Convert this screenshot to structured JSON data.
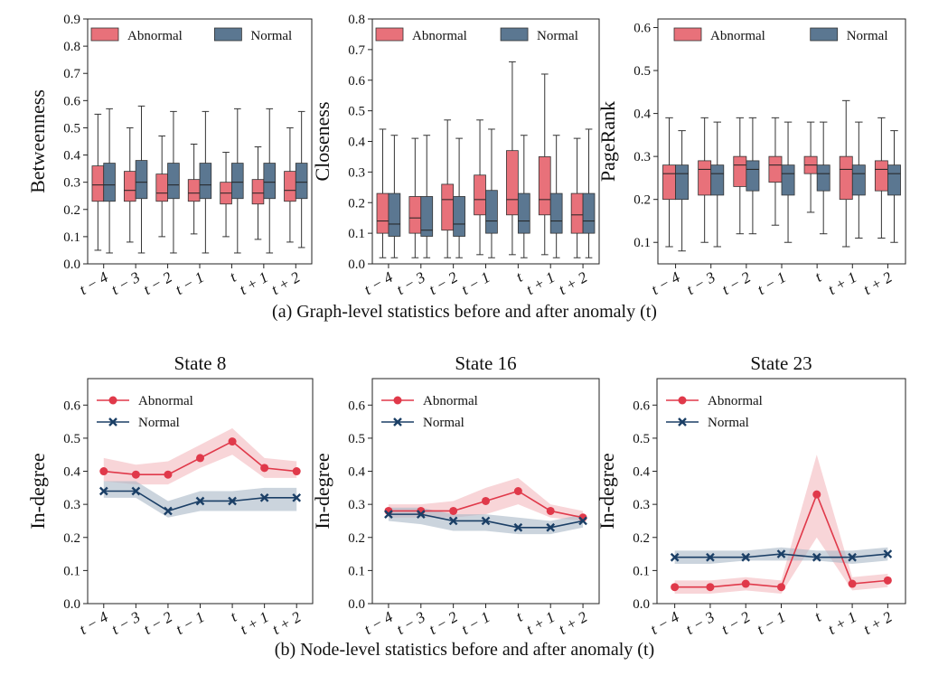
{
  "colors": {
    "abnormal": "#e8717a",
    "normal": "#5b7791",
    "abnormal_line": "#e0394a",
    "normal_line": "#1b3f66",
    "abnormal_band": "#f4b9be",
    "normal_band": "#a9b7c6",
    "axis": "#222222",
    "whisker": "#333333"
  },
  "captions": {
    "a": "(a) Graph-level statistics before and after anomaly (t)",
    "b": "(b) Node-level statistics before and after anomaly (t)"
  },
  "chart_data": [
    {
      "type": "box",
      "title": "",
      "ylabel": "Betweenness",
      "ylim": [
        0,
        0.9
      ],
      "yticks": [
        "0.0",
        "0.1",
        "0.2",
        "0.3",
        "0.4",
        "0.5",
        "0.6",
        "0.7",
        "0.8",
        "0.9"
      ],
      "categories": [
        "t − 4",
        "t − 3",
        "t − 2",
        "t − 1",
        "t",
        "t + 1",
        "t + 2"
      ],
      "legend": {
        "position": "top",
        "entries": [
          "Abnormal",
          "Normal"
        ]
      },
      "series": [
        {
          "name": "Abnormal",
          "boxes": [
            {
              "min": 0.05,
              "q1": 0.23,
              "median": 0.29,
              "q3": 0.36,
              "max": 0.55
            },
            {
              "min": 0.08,
              "q1": 0.23,
              "median": 0.27,
              "q3": 0.34,
              "max": 0.5
            },
            {
              "min": 0.1,
              "q1": 0.23,
              "median": 0.26,
              "q3": 0.33,
              "max": 0.47
            },
            {
              "min": 0.11,
              "q1": 0.23,
              "median": 0.26,
              "q3": 0.31,
              "max": 0.44
            },
            {
              "min": 0.1,
              "q1": 0.22,
              "median": 0.26,
              "q3": 0.3,
              "max": 0.41
            },
            {
              "min": 0.09,
              "q1": 0.22,
              "median": 0.26,
              "q3": 0.31,
              "max": 0.43
            },
            {
              "min": 0.08,
              "q1": 0.23,
              "median": 0.27,
              "q3": 0.34,
              "max": 0.5
            }
          ]
        },
        {
          "name": "Normal",
          "boxes": [
            {
              "min": 0.04,
              "q1": 0.23,
              "median": 0.29,
              "q3": 0.37,
              "max": 0.57
            },
            {
              "min": 0.04,
              "q1": 0.24,
              "median": 0.3,
              "q3": 0.38,
              "max": 0.58
            },
            {
              "min": 0.04,
              "q1": 0.24,
              "median": 0.29,
              "q3": 0.37,
              "max": 0.56
            },
            {
              "min": 0.04,
              "q1": 0.24,
              "median": 0.29,
              "q3": 0.37,
              "max": 0.56
            },
            {
              "min": 0.04,
              "q1": 0.24,
              "median": 0.3,
              "q3": 0.37,
              "max": 0.57
            },
            {
              "min": 0.04,
              "q1": 0.24,
              "median": 0.3,
              "q3": 0.37,
              "max": 0.57
            },
            {
              "min": 0.06,
              "q1": 0.24,
              "median": 0.3,
              "q3": 0.37,
              "max": 0.56
            }
          ]
        }
      ]
    },
    {
      "type": "box",
      "title": "",
      "ylabel": "Closeness",
      "ylim": [
        0,
        0.8
      ],
      "yticks": [
        "0.0",
        "0.1",
        "0.2",
        "0.3",
        "0.4",
        "0.5",
        "0.6",
        "0.7",
        "0.8"
      ],
      "categories": [
        "t − 4",
        "t − 3",
        "t − 2",
        "t − 1",
        "t",
        "t + 1",
        "t + 2"
      ],
      "legend": {
        "position": "top",
        "entries": [
          "Abnormal",
          "Normal"
        ]
      },
      "series": [
        {
          "name": "Abnormal",
          "boxes": [
            {
              "min": 0.02,
              "q1": 0.1,
              "median": 0.14,
              "q3": 0.23,
              "max": 0.44
            },
            {
              "min": 0.02,
              "q1": 0.1,
              "median": 0.15,
              "q3": 0.22,
              "max": 0.41
            },
            {
              "min": 0.02,
              "q1": 0.11,
              "median": 0.21,
              "q3": 0.26,
              "max": 0.47
            },
            {
              "min": 0.03,
              "q1": 0.16,
              "median": 0.21,
              "q3": 0.29,
              "max": 0.47
            },
            {
              "min": 0.03,
              "q1": 0.16,
              "median": 0.21,
              "q3": 0.37,
              "max": 0.66
            },
            {
              "min": 0.03,
              "q1": 0.16,
              "median": 0.21,
              "q3": 0.35,
              "max": 0.62
            },
            {
              "min": 0.02,
              "q1": 0.1,
              "median": 0.16,
              "q3": 0.23,
              "max": 0.41
            }
          ]
        },
        {
          "name": "Normal",
          "boxes": [
            {
              "min": 0.02,
              "q1": 0.09,
              "median": 0.13,
              "q3": 0.23,
              "max": 0.42
            },
            {
              "min": 0.02,
              "q1": 0.09,
              "median": 0.11,
              "q3": 0.22,
              "max": 0.42
            },
            {
              "min": 0.02,
              "q1": 0.09,
              "median": 0.13,
              "q3": 0.22,
              "max": 0.41
            },
            {
              "min": 0.02,
              "q1": 0.1,
              "median": 0.14,
              "q3": 0.24,
              "max": 0.44
            },
            {
              "min": 0.02,
              "q1": 0.1,
              "median": 0.14,
              "q3": 0.23,
              "max": 0.42
            },
            {
              "min": 0.02,
              "q1": 0.1,
              "median": 0.14,
              "q3": 0.23,
              "max": 0.42
            },
            {
              "min": 0.02,
              "q1": 0.1,
              "median": 0.14,
              "q3": 0.23,
              "max": 0.44
            }
          ]
        }
      ]
    },
    {
      "type": "box",
      "title": "",
      "ylabel": "PageRank",
      "ylim": [
        0.05,
        0.62
      ],
      "yticks": [
        "0.1",
        "0.2",
        "0.3",
        "0.4",
        "0.5",
        "0.6"
      ],
      "categories": [
        "t − 4",
        "t − 3",
        "t − 2",
        "t − 1",
        "t",
        "t + 1",
        "t + 2"
      ],
      "legend": {
        "position": "top",
        "entries": [
          "Abnormal",
          "Normal"
        ]
      },
      "series": [
        {
          "name": "Abnormal",
          "boxes": [
            {
              "min": 0.09,
              "q1": 0.2,
              "median": 0.26,
              "q3": 0.28,
              "max": 0.39
            },
            {
              "min": 0.1,
              "q1": 0.21,
              "median": 0.27,
              "q3": 0.29,
              "max": 0.39
            },
            {
              "min": 0.12,
              "q1": 0.23,
              "median": 0.28,
              "q3": 0.3,
              "max": 0.39
            },
            {
              "min": 0.14,
              "q1": 0.24,
              "median": 0.28,
              "q3": 0.3,
              "max": 0.39
            },
            {
              "min": 0.17,
              "q1": 0.26,
              "median": 0.28,
              "q3": 0.3,
              "max": 0.38
            },
            {
              "min": 0.09,
              "q1": 0.2,
              "median": 0.27,
              "q3": 0.3,
              "max": 0.43
            },
            {
              "min": 0.11,
              "q1": 0.22,
              "median": 0.27,
              "q3": 0.29,
              "max": 0.39
            }
          ]
        },
        {
          "name": "Normal",
          "boxes": [
            {
              "min": 0.08,
              "q1": 0.2,
              "median": 0.26,
              "q3": 0.28,
              "max": 0.36
            },
            {
              "min": 0.09,
              "q1": 0.21,
              "median": 0.26,
              "q3": 0.28,
              "max": 0.38
            },
            {
              "min": 0.12,
              "q1": 0.22,
              "median": 0.27,
              "q3": 0.29,
              "max": 0.39
            },
            {
              "min": 0.1,
              "q1": 0.21,
              "median": 0.26,
              "q3": 0.28,
              "max": 0.38
            },
            {
              "min": 0.12,
              "q1": 0.22,
              "median": 0.26,
              "q3": 0.28,
              "max": 0.38
            },
            {
              "min": 0.11,
              "q1": 0.21,
              "median": 0.26,
              "q3": 0.28,
              "max": 0.38
            },
            {
              "min": 0.1,
              "q1": 0.21,
              "median": 0.26,
              "q3": 0.28,
              "max": 0.36
            }
          ]
        }
      ]
    },
    {
      "type": "line",
      "title": "State 8",
      "ylabel": "In-degree",
      "ylim": [
        0,
        0.68
      ],
      "yticks": [
        "0.0",
        "0.1",
        "0.2",
        "0.3",
        "0.4",
        "0.5",
        "0.6"
      ],
      "categories": [
        "t − 4",
        "t − 3",
        "t − 2",
        "t − 1",
        "t",
        "t + 1",
        "t + 2"
      ],
      "legend": {
        "position": "top-left",
        "entries": [
          "Abnormal",
          "Normal"
        ]
      },
      "series": [
        {
          "name": "Abnormal",
          "marker": "circle",
          "values": [
            0.4,
            0.39,
            0.39,
            0.44,
            0.49,
            0.41,
            0.4
          ],
          "lower": [
            0.37,
            0.36,
            0.36,
            0.41,
            0.45,
            0.38,
            0.38
          ],
          "upper": [
            0.44,
            0.42,
            0.43,
            0.48,
            0.53,
            0.44,
            0.43
          ]
        },
        {
          "name": "Normal",
          "marker": "x",
          "values": [
            0.34,
            0.34,
            0.28,
            0.31,
            0.31,
            0.32,
            0.32
          ],
          "lower": [
            0.32,
            0.32,
            0.26,
            0.28,
            0.28,
            0.28,
            0.28
          ],
          "upper": [
            0.37,
            0.37,
            0.31,
            0.34,
            0.34,
            0.35,
            0.35
          ]
        }
      ]
    },
    {
      "type": "line",
      "title": "State 16",
      "ylabel": "In-degree",
      "ylim": [
        0,
        0.68
      ],
      "yticks": [
        "0.0",
        "0.1",
        "0.2",
        "0.3",
        "0.4",
        "0.5",
        "0.6"
      ],
      "categories": [
        "t − 4",
        "t − 3",
        "t − 2",
        "t − 1",
        "t",
        "t + 1",
        "t + 2"
      ],
      "legend": {
        "position": "top-left",
        "entries": [
          "Abnormal",
          "Normal"
        ]
      },
      "series": [
        {
          "name": "Abnormal",
          "marker": "circle",
          "values": [
            0.28,
            0.28,
            0.28,
            0.31,
            0.34,
            0.28,
            0.26
          ],
          "lower": [
            0.26,
            0.26,
            0.26,
            0.27,
            0.3,
            0.26,
            0.25
          ],
          "upper": [
            0.3,
            0.3,
            0.31,
            0.35,
            0.38,
            0.3,
            0.28
          ]
        },
        {
          "name": "Normal",
          "marker": "x",
          "values": [
            0.27,
            0.27,
            0.25,
            0.25,
            0.23,
            0.23,
            0.25
          ],
          "lower": [
            0.25,
            0.24,
            0.22,
            0.22,
            0.21,
            0.21,
            0.23
          ],
          "upper": [
            0.29,
            0.29,
            0.27,
            0.27,
            0.26,
            0.25,
            0.27
          ]
        }
      ]
    },
    {
      "type": "line",
      "title": "State 23",
      "ylabel": "In-degree",
      "ylim": [
        0,
        0.68
      ],
      "yticks": [
        "0.0",
        "0.1",
        "0.2",
        "0.3",
        "0.4",
        "0.5",
        "0.6"
      ],
      "categories": [
        "t − 4",
        "t − 3",
        "t − 2",
        "t − 1",
        "t",
        "t + 1",
        "t + 2"
      ],
      "legend": {
        "position": "top-left",
        "entries": [
          "Abnormal",
          "Normal"
        ]
      },
      "series": [
        {
          "name": "Abnormal",
          "marker": "circle",
          "values": [
            0.05,
            0.05,
            0.06,
            0.05,
            0.33,
            0.06,
            0.07
          ],
          "lower": [
            0.03,
            0.03,
            0.04,
            0.03,
            0.2,
            0.04,
            0.05
          ],
          "upper": [
            0.07,
            0.07,
            0.08,
            0.07,
            0.45,
            0.08,
            0.09
          ]
        },
        {
          "name": "Normal",
          "marker": "x",
          "values": [
            0.14,
            0.14,
            0.14,
            0.15,
            0.14,
            0.14,
            0.15
          ],
          "lower": [
            0.12,
            0.12,
            0.13,
            0.13,
            0.13,
            0.12,
            0.13
          ],
          "upper": [
            0.16,
            0.16,
            0.16,
            0.17,
            0.16,
            0.16,
            0.17
          ]
        }
      ]
    }
  ]
}
